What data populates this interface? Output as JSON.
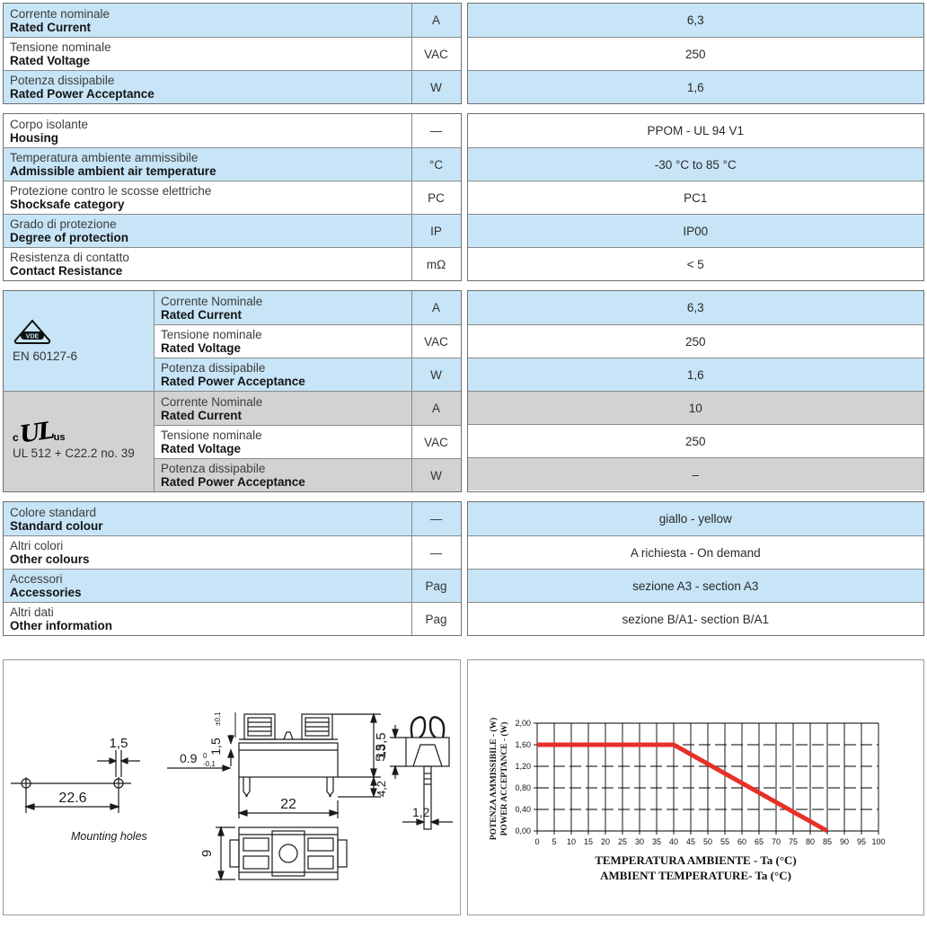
{
  "colors": {
    "row_blue": "#c7e5f7",
    "row_gray": "#d2d2d2",
    "line_red": "#e63028",
    "table_border": "#6f6f6f"
  },
  "table1": {
    "rows": [
      {
        "it": "Corrente nominale",
        "en": "Rated Current",
        "unit": "A",
        "value": "6,3"
      },
      {
        "it": "Tensione nominale",
        "en": "Rated Voltage",
        "unit": "VAC",
        "value": "250"
      },
      {
        "it": "Potenza dissipabile",
        "en": "Rated Power Acceptance",
        "unit": "W",
        "value": "1,6"
      }
    ]
  },
  "table2": {
    "rows": [
      {
        "it": "Corpo isolante",
        "en": "Housing",
        "unit": "—",
        "value": "PPOM - UL 94 V1"
      },
      {
        "it": "Temperatura ambiente ammissibile",
        "en": "Admissible ambient air temperature",
        "unit": "°C",
        "value": "-30 °C to 85 °C"
      },
      {
        "it": "Protezione contro le scosse elettriche",
        "en": "Shocksafe category",
        "unit": "PC",
        "value": "PC1"
      },
      {
        "it": "Grado di protezione",
        "en": "Degree of protection",
        "unit": "IP",
        "value": "IP00"
      },
      {
        "it": "Resistenza di contatto",
        "en": "Contact Resistance",
        "unit": "mΩ",
        "value": "< 5"
      }
    ]
  },
  "table3": {
    "groups": [
      {
        "logo": "vde-logo",
        "logo_text": "VDE",
        "standard": "EN 60127-6",
        "rows": [
          {
            "it": "Corrente Nominale",
            "en": "Rated Current",
            "unit": "A",
            "value": "6,3"
          },
          {
            "it": "Tensione nominale",
            "en": "Rated Voltage",
            "unit": "VAC",
            "value": "250"
          },
          {
            "it": "Potenza dissipabile",
            "en": "Rated Power Acceptance",
            "unit": "W",
            "value": "1,6"
          }
        ]
      },
      {
        "logo": "cul-logo",
        "logo_c": "c",
        "logo_ul": "UL",
        "logo_us": "us",
        "standard": "UL 512 + C22.2 no. 39",
        "rows": [
          {
            "it": "Corrente Nominale",
            "en": "Rated Current",
            "unit": "A",
            "value": "10"
          },
          {
            "it": "Tensione nominale",
            "en": "Rated Voltage",
            "unit": "VAC",
            "value": "250"
          },
          {
            "it": "Potenza dissipabile",
            "en": "Rated Power Acceptance",
            "unit": "W",
            "value": "–"
          }
        ]
      }
    ]
  },
  "table4": {
    "rows": [
      {
        "it": "Colore standard",
        "en": "Standard colour",
        "unit": "—",
        "value": "giallo - yellow"
      },
      {
        "it": "Altri colori",
        "en": "Other colours",
        "unit": "—",
        "value": "A richiesta - On demand"
      },
      {
        "it": "Accessori",
        "en": "Accessories",
        "unit": "Pag",
        "value": "sezione A3 - section A3"
      },
      {
        "it": "Altri dati",
        "en": "Other information",
        "unit": "Pag",
        "value": "sezione B/A1- section B/A1"
      }
    ]
  },
  "drawings": {
    "mounting": {
      "hole_spacing": "22.6",
      "slot_width": "1,5",
      "caption": "Mounting holes"
    },
    "side_view": {
      "body_width": "22",
      "body_height": "13,5",
      "pin_length": "4,2",
      "slot": "1,5",
      "slot_tol": "±0,1",
      "thickness": "0.9",
      "thickness_tol_top": "0",
      "thickness_tol_bot": "-0,1",
      "depth": "9"
    },
    "end_view": {
      "clip_height": "5,5",
      "pin_width": "1,2"
    }
  },
  "chart_data": {
    "type": "line",
    "series": [
      {
        "name": "power-acceptance-derating",
        "color": "#e63028",
        "points": [
          [
            0,
            1.6
          ],
          [
            40,
            1.6
          ],
          [
            85,
            0.0
          ]
        ]
      }
    ],
    "xlim": [
      0,
      100
    ],
    "ylim": [
      0,
      2
    ],
    "xticks": [
      0,
      5,
      10,
      15,
      20,
      25,
      30,
      35,
      40,
      45,
      50,
      55,
      60,
      65,
      70,
      75,
      80,
      85,
      90,
      95,
      100
    ],
    "yticks": [
      0,
      0.4,
      0.8,
      1.2,
      1.6,
      2
    ],
    "ytick_labels": [
      "0,00",
      "0,40",
      "0,80",
      "1,20",
      "1,60",
      "2,00"
    ],
    "ylabel_it": "POTENZA AMMISSIBILE - (W)",
    "ylabel_en": "POWER ACCEPTANCE - (W)",
    "xlabel_it": "TEMPERATURA AMBIENTE - Ta (°C)",
    "xlabel_en": "AMBIENT TEMPERATURE- Ta (°C)",
    "grid": "on",
    "legend": "none"
  }
}
